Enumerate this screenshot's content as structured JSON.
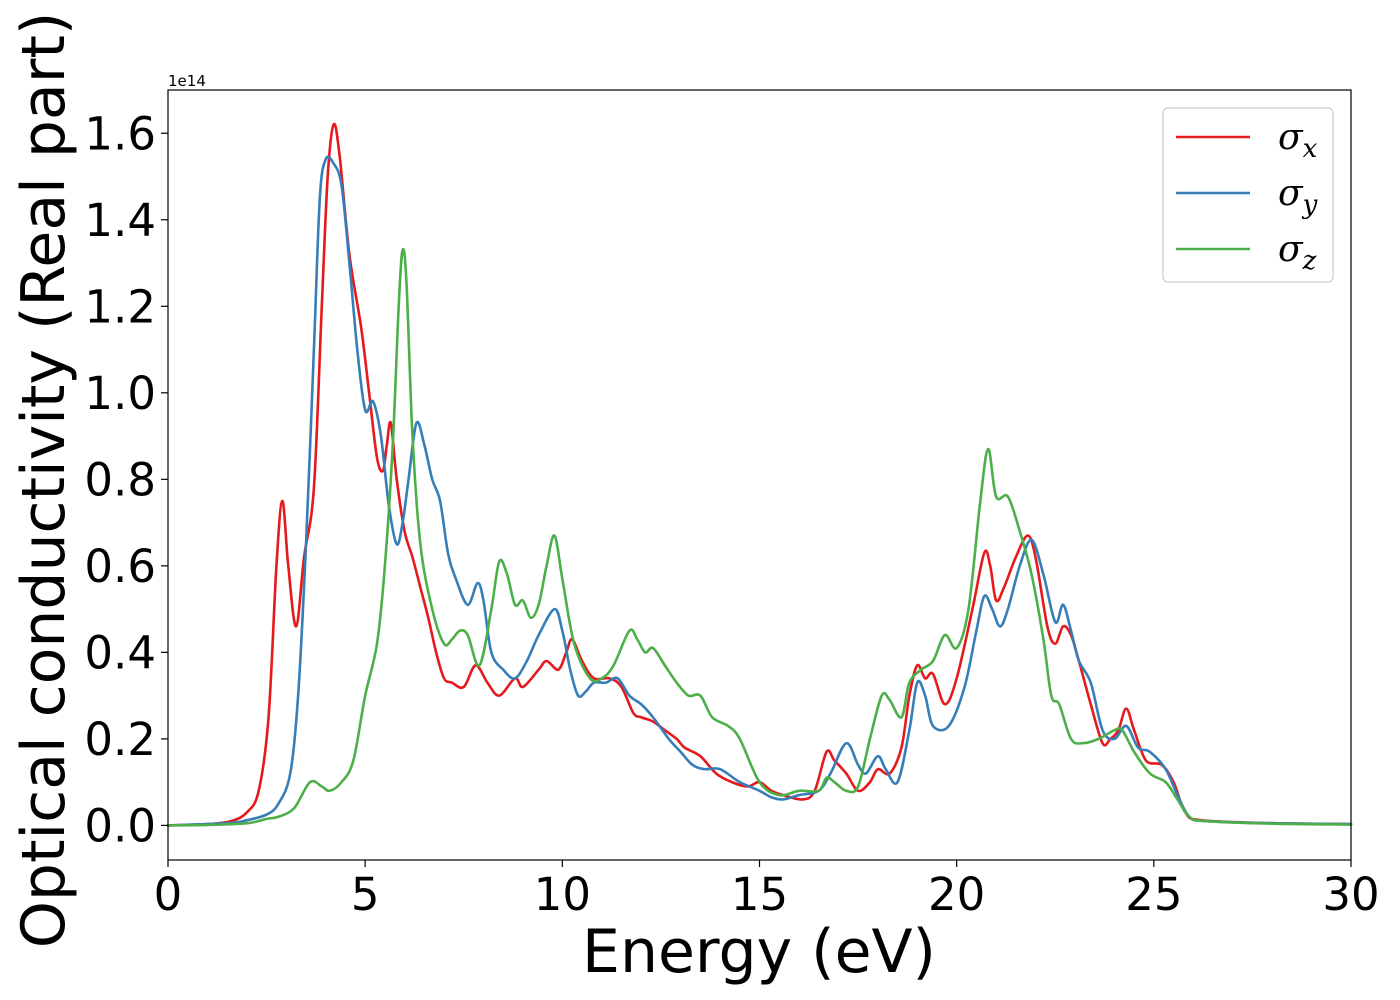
{
  "chart_data": {
    "type": "line",
    "xlabel": "Energy (eV)",
    "ylabel": "Optical conductivity (Real part)",
    "offset_label": "1e14",
    "xlim": [
      0,
      30
    ],
    "ylim": [
      -0.08,
      1.7
    ],
    "y_scale_factor": 100000000000000.0,
    "xticks": [
      0,
      5,
      10,
      15,
      20,
      25,
      30
    ],
    "xtick_labels": [
      "0",
      "5",
      "10",
      "15",
      "20",
      "25",
      "30"
    ],
    "yticks": [
      0.0,
      0.2,
      0.4,
      0.6,
      0.8,
      1.0,
      1.2,
      1.4,
      1.6
    ],
    "ytick_labels": [
      "0.0",
      "0.2",
      "0.4",
      "0.6",
      "0.8",
      "1.0",
      "1.2",
      "1.4",
      "1.6"
    ],
    "grid": false,
    "legend_position": "top-right",
    "series": [
      {
        "name": "σx",
        "legend_symbol": "σ",
        "legend_subscript": "x",
        "color": "#e41a1c",
        "points": [
          [
            0,
            0
          ],
          [
            1,
            0.003
          ],
          [
            1.6,
            0.01
          ],
          [
            2,
            0.03
          ],
          [
            2.3,
            0.08
          ],
          [
            2.55,
            0.25
          ],
          [
            2.75,
            0.6
          ],
          [
            2.9,
            0.75
          ],
          [
            3.05,
            0.6
          ],
          [
            3.25,
            0.46
          ],
          [
            3.45,
            0.62
          ],
          [
            3.7,
            0.78
          ],
          [
            3.9,
            1.2
          ],
          [
            4.05,
            1.5
          ],
          [
            4.2,
            1.62
          ],
          [
            4.35,
            1.55
          ],
          [
            4.6,
            1.32
          ],
          [
            4.9,
            1.15
          ],
          [
            5.1,
            1.0
          ],
          [
            5.3,
            0.85
          ],
          [
            5.45,
            0.82
          ],
          [
            5.55,
            0.88
          ],
          [
            5.65,
            0.93
          ],
          [
            5.8,
            0.8
          ],
          [
            6.0,
            0.68
          ],
          [
            6.2,
            0.62
          ],
          [
            6.4,
            0.55
          ],
          [
            6.6,
            0.48
          ],
          [
            6.8,
            0.4
          ],
          [
            7.0,
            0.34
          ],
          [
            7.2,
            0.33
          ],
          [
            7.5,
            0.32
          ],
          [
            7.8,
            0.37
          ],
          [
            8.1,
            0.33
          ],
          [
            8.4,
            0.3
          ],
          [
            8.8,
            0.34
          ],
          [
            9.0,
            0.32
          ],
          [
            9.4,
            0.36
          ],
          [
            9.6,
            0.38
          ],
          [
            9.9,
            0.36
          ],
          [
            10.1,
            0.4
          ],
          [
            10.25,
            0.43
          ],
          [
            10.5,
            0.38
          ],
          [
            10.8,
            0.34
          ],
          [
            11.2,
            0.34
          ],
          [
            11.5,
            0.32
          ],
          [
            11.8,
            0.26
          ],
          [
            12.0,
            0.25
          ],
          [
            12.3,
            0.24
          ],
          [
            12.6,
            0.22
          ],
          [
            12.9,
            0.2
          ],
          [
            13.1,
            0.18
          ],
          [
            13.5,
            0.16
          ],
          [
            13.9,
            0.12
          ],
          [
            14.3,
            0.1
          ],
          [
            14.7,
            0.09
          ],
          [
            15.0,
            0.1
          ],
          [
            15.3,
            0.08
          ],
          [
            15.6,
            0.07
          ],
          [
            16.1,
            0.06
          ],
          [
            16.4,
            0.08
          ],
          [
            16.7,
            0.17
          ],
          [
            16.9,
            0.15
          ],
          [
            17.2,
            0.12
          ],
          [
            17.5,
            0.08
          ],
          [
            17.8,
            0.1
          ],
          [
            18.0,
            0.13
          ],
          [
            18.3,
            0.12
          ],
          [
            18.6,
            0.18
          ],
          [
            18.8,
            0.3
          ],
          [
            19.0,
            0.37
          ],
          [
            19.2,
            0.34
          ],
          [
            19.4,
            0.35
          ],
          [
            19.7,
            0.28
          ],
          [
            20.0,
            0.34
          ],
          [
            20.4,
            0.5
          ],
          [
            20.7,
            0.63
          ],
          [
            20.85,
            0.6
          ],
          [
            21.0,
            0.52
          ],
          [
            21.2,
            0.55
          ],
          [
            21.5,
            0.62
          ],
          [
            21.8,
            0.67
          ],
          [
            22.0,
            0.62
          ],
          [
            22.3,
            0.46
          ],
          [
            22.5,
            0.42
          ],
          [
            22.7,
            0.46
          ],
          [
            22.9,
            0.44
          ],
          [
            23.1,
            0.38
          ],
          [
            23.4,
            0.28
          ],
          [
            23.7,
            0.19
          ],
          [
            23.9,
            0.2
          ],
          [
            24.1,
            0.22
          ],
          [
            24.3,
            0.27
          ],
          [
            24.5,
            0.22
          ],
          [
            24.8,
            0.15
          ],
          [
            25.2,
            0.14
          ],
          [
            25.5,
            0.1
          ],
          [
            25.8,
            0.03
          ],
          [
            26.2,
            0.012
          ],
          [
            28,
            0.005
          ],
          [
            30,
            0.003
          ]
        ]
      },
      {
        "name": "σy",
        "legend_symbol": "σ",
        "legend_subscript": "y",
        "color": "#377eb8",
        "points": [
          [
            0,
            0
          ],
          [
            1.5,
            0.005
          ],
          [
            2,
            0.012
          ],
          [
            2.5,
            0.025
          ],
          [
            2.8,
            0.05
          ],
          [
            3.1,
            0.12
          ],
          [
            3.3,
            0.3
          ],
          [
            3.5,
            0.65
          ],
          [
            3.7,
            1.1
          ],
          [
            3.85,
            1.45
          ],
          [
            4.0,
            1.54
          ],
          [
            4.2,
            1.53
          ],
          [
            4.4,
            1.48
          ],
          [
            4.6,
            1.3
          ],
          [
            4.8,
            1.1
          ],
          [
            5.0,
            0.96
          ],
          [
            5.2,
            0.98
          ],
          [
            5.4,
            0.9
          ],
          [
            5.6,
            0.74
          ],
          [
            5.8,
            0.65
          ],
          [
            5.95,
            0.7
          ],
          [
            6.1,
            0.8
          ],
          [
            6.3,
            0.93
          ],
          [
            6.5,
            0.88
          ],
          [
            6.7,
            0.8
          ],
          [
            6.9,
            0.75
          ],
          [
            7.1,
            0.63
          ],
          [
            7.3,
            0.57
          ],
          [
            7.6,
            0.51
          ],
          [
            7.85,
            0.56
          ],
          [
            8.0,
            0.52
          ],
          [
            8.2,
            0.4
          ],
          [
            8.5,
            0.36
          ],
          [
            8.8,
            0.34
          ],
          [
            9.1,
            0.38
          ],
          [
            9.4,
            0.44
          ],
          [
            9.8,
            0.5
          ],
          [
            10.0,
            0.45
          ],
          [
            10.2,
            0.36
          ],
          [
            10.4,
            0.3
          ],
          [
            10.6,
            0.31
          ],
          [
            10.8,
            0.33
          ],
          [
            11.1,
            0.33
          ],
          [
            11.4,
            0.34
          ],
          [
            11.7,
            0.3
          ],
          [
            12.0,
            0.28
          ],
          [
            12.3,
            0.25
          ],
          [
            12.7,
            0.2
          ],
          [
            13.0,
            0.17
          ],
          [
            13.3,
            0.14
          ],
          [
            13.6,
            0.13
          ],
          [
            14.0,
            0.13
          ],
          [
            14.5,
            0.1
          ],
          [
            15.0,
            0.08
          ],
          [
            15.3,
            0.065
          ],
          [
            15.6,
            0.06
          ],
          [
            16.0,
            0.07
          ],
          [
            16.5,
            0.08
          ],
          [
            16.8,
            0.12
          ],
          [
            17.2,
            0.19
          ],
          [
            17.5,
            0.14
          ],
          [
            17.7,
            0.12
          ],
          [
            18.0,
            0.16
          ],
          [
            18.2,
            0.13
          ],
          [
            18.5,
            0.1
          ],
          [
            18.8,
            0.22
          ],
          [
            19.0,
            0.33
          ],
          [
            19.2,
            0.3
          ],
          [
            19.4,
            0.23
          ],
          [
            19.8,
            0.23
          ],
          [
            20.2,
            0.32
          ],
          [
            20.5,
            0.45
          ],
          [
            20.7,
            0.53
          ],
          [
            20.9,
            0.5
          ],
          [
            21.1,
            0.46
          ],
          [
            21.3,
            0.5
          ],
          [
            21.6,
            0.6
          ],
          [
            21.9,
            0.66
          ],
          [
            22.2,
            0.58
          ],
          [
            22.5,
            0.47
          ],
          [
            22.7,
            0.51
          ],
          [
            22.9,
            0.45
          ],
          [
            23.1,
            0.38
          ],
          [
            23.4,
            0.33
          ],
          [
            23.7,
            0.22
          ],
          [
            24.0,
            0.2
          ],
          [
            24.3,
            0.23
          ],
          [
            24.6,
            0.18
          ],
          [
            24.9,
            0.17
          ],
          [
            25.3,
            0.13
          ],
          [
            25.6,
            0.07
          ],
          [
            25.9,
            0.02
          ],
          [
            26.3,
            0.01
          ],
          [
            28,
            0.005
          ],
          [
            30,
            0.003
          ]
        ]
      },
      {
        "name": "σz",
        "legend_symbol": "σ",
        "legend_subscript": "z",
        "color": "#4daf4a",
        "points": [
          [
            0,
            0
          ],
          [
            1,
            0.001
          ],
          [
            2,
            0.005
          ],
          [
            2.5,
            0.015
          ],
          [
            2.8,
            0.02
          ],
          [
            3.2,
            0.04
          ],
          [
            3.6,
            0.1
          ],
          [
            3.9,
            0.09
          ],
          [
            4.1,
            0.08
          ],
          [
            4.4,
            0.1
          ],
          [
            4.7,
            0.15
          ],
          [
            5.0,
            0.3
          ],
          [
            5.3,
            0.42
          ],
          [
            5.5,
            0.6
          ],
          [
            5.7,
            0.88
          ],
          [
            5.85,
            1.2
          ],
          [
            5.95,
            1.33
          ],
          [
            6.05,
            1.25
          ],
          [
            6.2,
            0.9
          ],
          [
            6.4,
            0.65
          ],
          [
            6.7,
            0.5
          ],
          [
            7.0,
            0.42
          ],
          [
            7.2,
            0.43
          ],
          [
            7.4,
            0.45
          ],
          [
            7.6,
            0.44
          ],
          [
            7.9,
            0.37
          ],
          [
            8.2,
            0.5
          ],
          [
            8.4,
            0.61
          ],
          [
            8.6,
            0.58
          ],
          [
            8.8,
            0.51
          ],
          [
            9.0,
            0.52
          ],
          [
            9.2,
            0.48
          ],
          [
            9.4,
            0.51
          ],
          [
            9.6,
            0.6
          ],
          [
            9.8,
            0.67
          ],
          [
            10.0,
            0.57
          ],
          [
            10.3,
            0.42
          ],
          [
            10.7,
            0.34
          ],
          [
            11.0,
            0.34
          ],
          [
            11.3,
            0.37
          ],
          [
            11.7,
            0.45
          ],
          [
            11.9,
            0.43
          ],
          [
            12.1,
            0.4
          ],
          [
            12.3,
            0.41
          ],
          [
            12.6,
            0.37
          ],
          [
            12.9,
            0.33
          ],
          [
            13.2,
            0.3
          ],
          [
            13.5,
            0.3
          ],
          [
            13.8,
            0.25
          ],
          [
            14.2,
            0.23
          ],
          [
            14.5,
            0.2
          ],
          [
            15.0,
            0.1
          ],
          [
            15.5,
            0.07
          ],
          [
            16.0,
            0.08
          ],
          [
            16.5,
            0.08
          ],
          [
            16.7,
            0.11
          ],
          [
            16.9,
            0.1
          ],
          [
            17.2,
            0.08
          ],
          [
            17.5,
            0.09
          ],
          [
            17.8,
            0.2
          ],
          [
            18.1,
            0.3
          ],
          [
            18.3,
            0.29
          ],
          [
            18.6,
            0.25
          ],
          [
            18.8,
            0.33
          ],
          [
            19.1,
            0.36
          ],
          [
            19.4,
            0.38
          ],
          [
            19.7,
            0.44
          ],
          [
            20.0,
            0.41
          ],
          [
            20.3,
            0.5
          ],
          [
            20.6,
            0.75
          ],
          [
            20.8,
            0.87
          ],
          [
            21.0,
            0.76
          ],
          [
            21.3,
            0.76
          ],
          [
            21.6,
            0.68
          ],
          [
            21.9,
            0.58
          ],
          [
            22.2,
            0.43
          ],
          [
            22.4,
            0.3
          ],
          [
            22.6,
            0.28
          ],
          [
            22.9,
            0.2
          ],
          [
            23.2,
            0.19
          ],
          [
            23.6,
            0.2
          ],
          [
            24.0,
            0.22
          ],
          [
            24.2,
            0.22
          ],
          [
            24.5,
            0.17
          ],
          [
            24.9,
            0.12
          ],
          [
            25.3,
            0.1
          ],
          [
            25.6,
            0.06
          ],
          [
            25.9,
            0.02
          ],
          [
            26.3,
            0.01
          ],
          [
            28,
            0.004
          ],
          [
            30,
            0.002
          ]
        ]
      }
    ]
  }
}
